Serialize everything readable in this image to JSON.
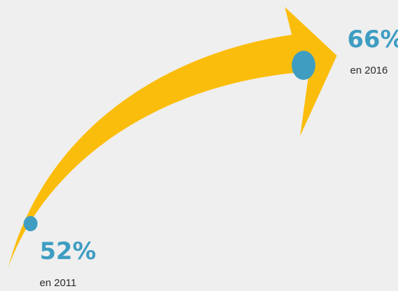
{
  "colors": {
    "background": "#efefef",
    "arrow": "#fbbd0b",
    "marker": "#3f9dc2",
    "value_text": "#3f9dc2"
  },
  "start": {
    "value": "52%",
    "label": "en 2011"
  },
  "end": {
    "value": "66%",
    "label": "en 2016"
  }
}
